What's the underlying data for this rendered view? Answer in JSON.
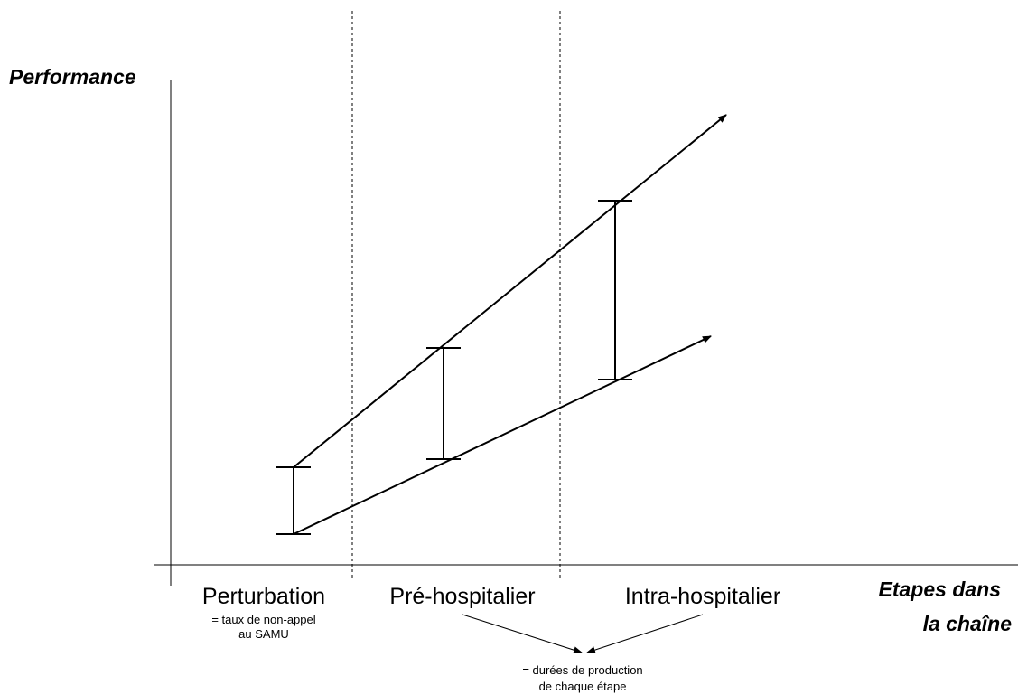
{
  "y_axis_label": "Performance",
  "x_axis_label": [
    "Etapes dans",
    "la chaîne"
  ],
  "stages": [
    {
      "label": "Perturbation",
      "note": [
        "= taux de non-appel",
        "au SAMU"
      ]
    },
    {
      "label": "Pré-hospitalier"
    },
    {
      "label": "Intra-hospitalier"
    }
  ],
  "shared_note": [
    "= durées de production",
    "de chaque étape"
  ]
}
